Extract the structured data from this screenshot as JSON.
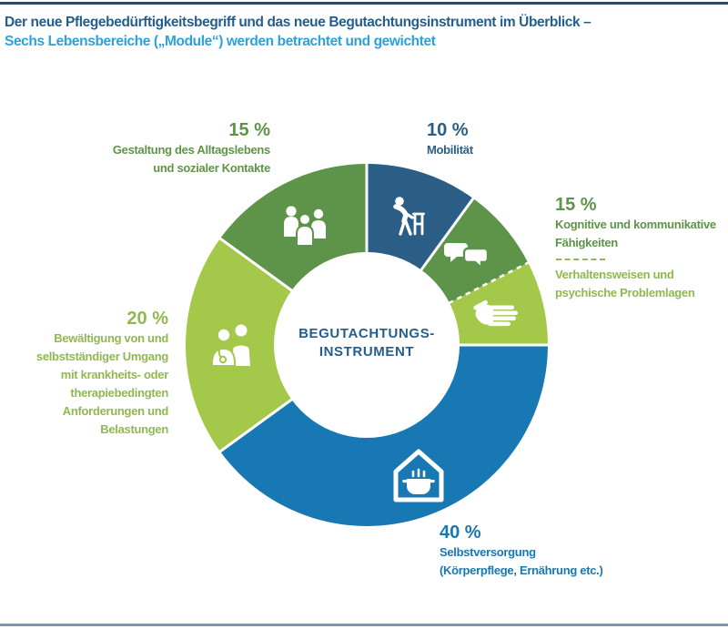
{
  "header": {
    "title_line1": "Der neue Pflegebedürftigkeitsbegriff und das neue Begutachtungsinstrument im Überblick –",
    "title_line2": "Sechs Lebensbereiche („Module“) werden betrachtet und gewichtet"
  },
  "colors": {
    "title_dark_blue": "#245e8d",
    "subtitle_light_blue": "#2aa3dc",
    "segment_dark_blue": "#2b5e86",
    "segment_blue": "#1778b3",
    "segment_medium_green": "#5e9449",
    "segment_light_green": "#a3c84a",
    "label_light_green_text": "#8fb94e",
    "top_rule": "#2b4a68",
    "bottom_rule": "#7e97ad",
    "background": "#ffffff"
  },
  "chart_data": {
    "type": "pie",
    "variant": "donut",
    "direction": "clockwise",
    "start_angle_deg": 0,
    "center_label": [
      "BEGUTACHTUNGS-",
      "INSTRUMENT"
    ],
    "slices": [
      {
        "name": "Mobilität",
        "percent": 10,
        "color": "#2b5e86",
        "icon": "walker-icon",
        "boundary_before": "solid"
      },
      {
        "name": "Kognitive und kommunikative Fähigkeiten",
        "percent": 7.5,
        "color": "#5e9449",
        "icon": "speech-bubbles-icon",
        "boundary_before": "solid"
      },
      {
        "name": "Verhaltensweisen und psychische Problemlagen",
        "percent": 7.5,
        "color": "#a3c84a",
        "icon": "hand-icon",
        "boundary_before": "dashed"
      },
      {
        "name": "Selbstversorgung (Körperpflege, Ernährung etc.)",
        "percent": 40,
        "color": "#1778b3",
        "icon": "house-pot-icon",
        "boundary_before": "solid"
      },
      {
        "name": "Bewältigung von und selbstständiger Umgang mit krankheits- oder therapiebedingten Anforderungen und Belastungen",
        "percent": 20,
        "color": "#a3c84a",
        "icon": "doctor-patient-icon",
        "boundary_before": "solid"
      },
      {
        "name": "Gestaltung des Alltagslebens und sozialer Kontakte",
        "percent": 15,
        "color": "#5e9449",
        "icon": "people-group-icon",
        "boundary_before": "solid"
      }
    ],
    "labels": {
      "gestaltung": {
        "percent": "15 %",
        "lines": [
          "Gestaltung des Alltagslebens",
          "und sozialer Kontakte"
        ]
      },
      "mobilitaet": {
        "percent": "10 %",
        "lines": [
          "Mobilität"
        ]
      },
      "kognitive": {
        "percent": "15 %",
        "lines": [
          "Kognitive und kommunikative",
          "Fähigkeiten"
        ],
        "sub_lines": [
          "Verhaltensweisen und",
          "psychische Problemlagen"
        ]
      },
      "bewaeltigung": {
        "percent": "20 %",
        "lines": [
          "Bewältigung von und",
          "selbstständiger Umgang",
          "mit krankheits- oder",
          "therapiebedingten",
          "Anforderungen und",
          "Belastungen"
        ]
      },
      "selbstversorgung": {
        "percent": "40 %",
        "lines": [
          "Selbstversorgung",
          "(Körperpflege, Ernährung etc.)"
        ]
      }
    }
  }
}
